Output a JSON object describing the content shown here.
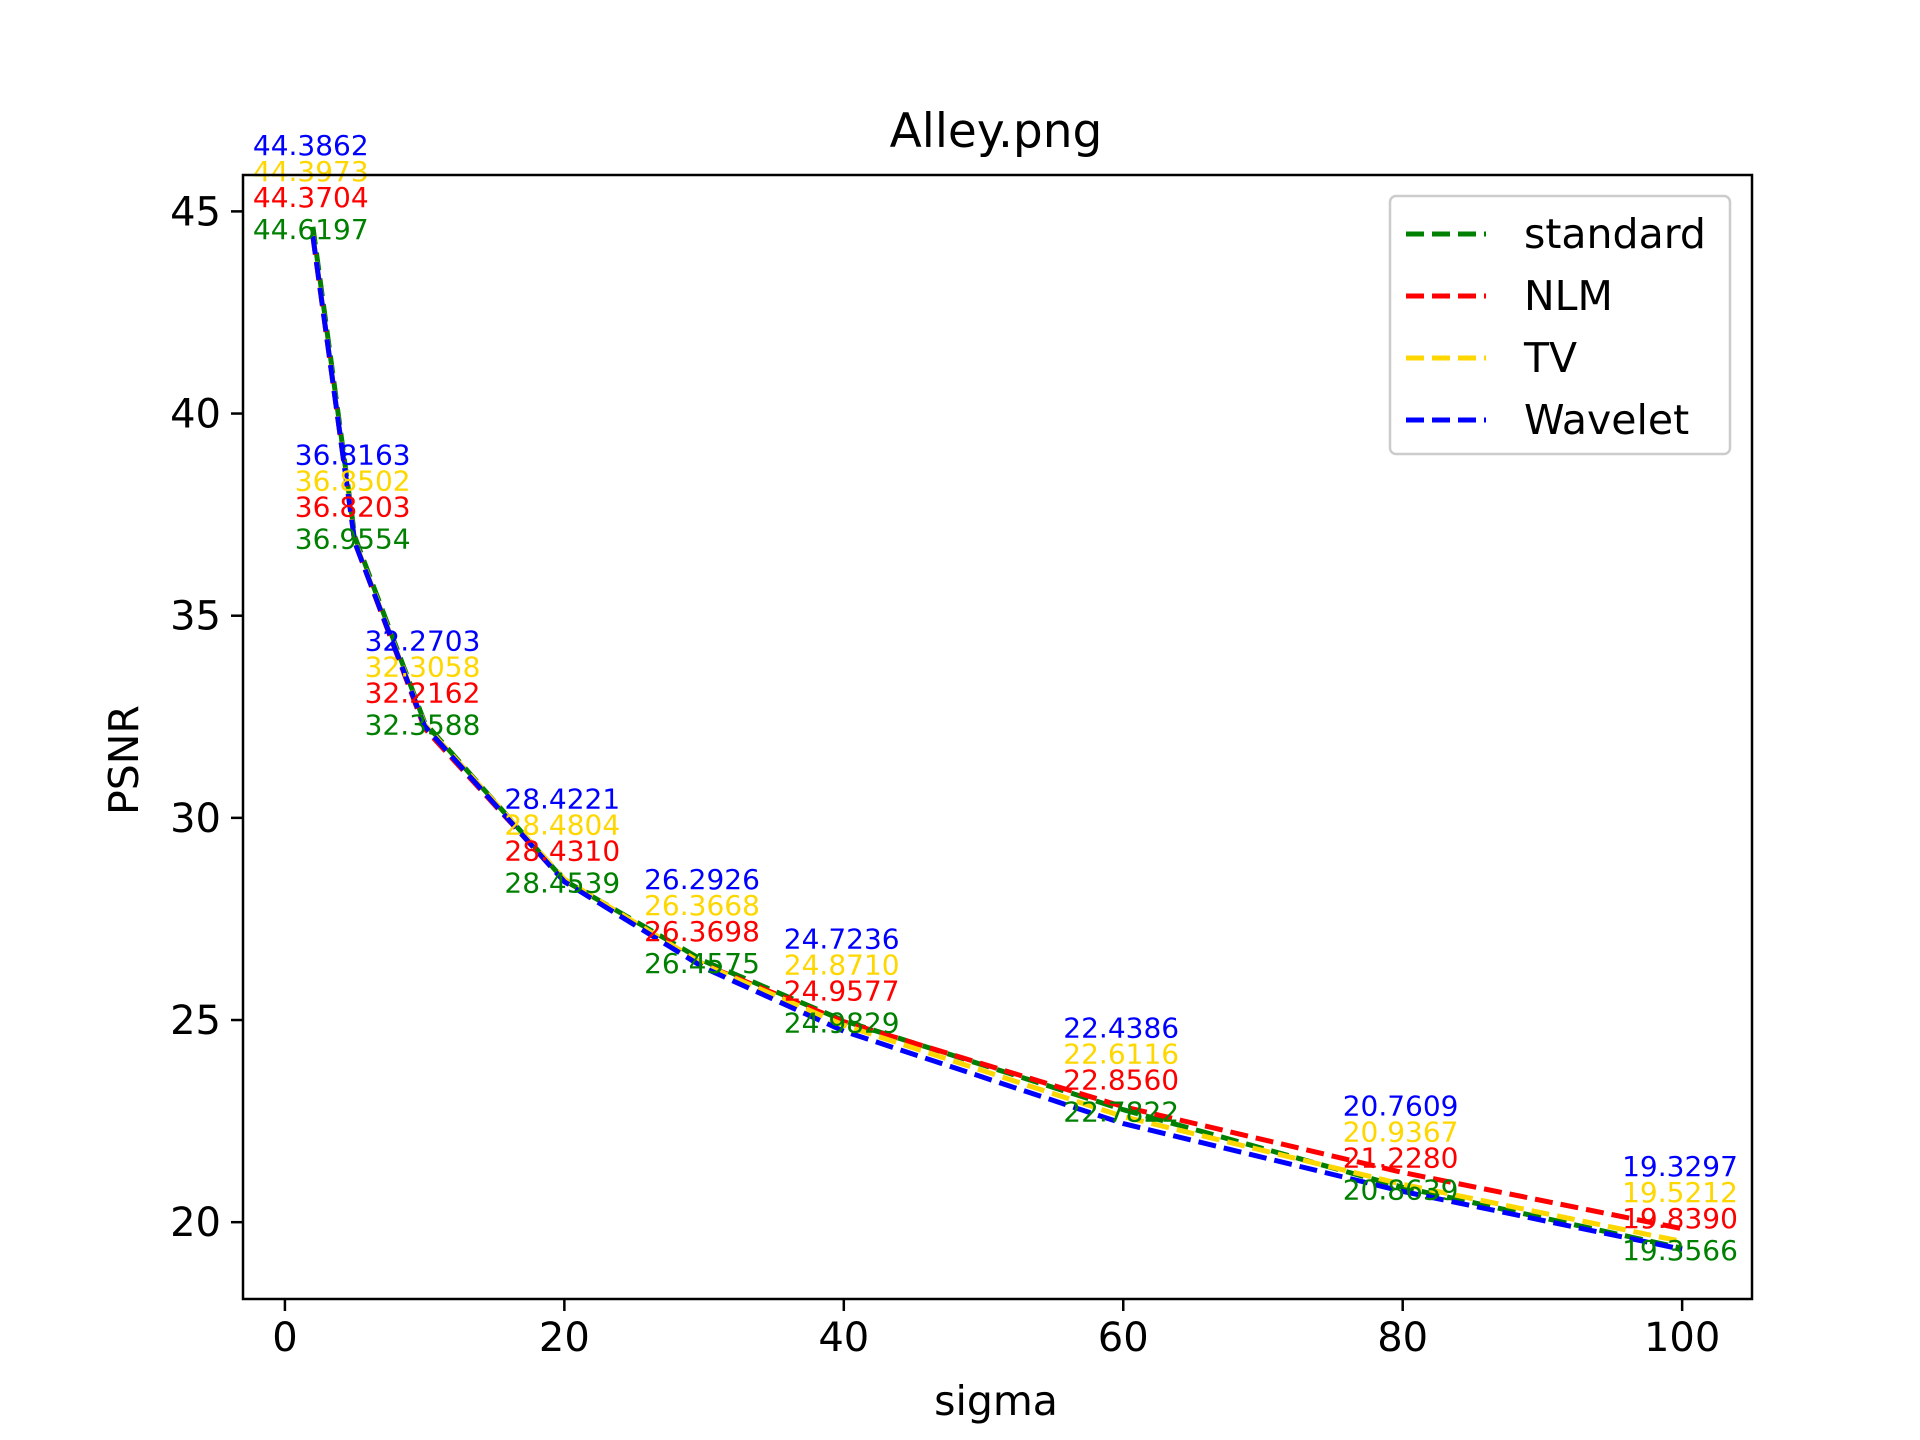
{
  "chart_data": {
    "type": "line",
    "title": "Alley.png",
    "xlabel": "sigma",
    "ylabel": "PSNR",
    "x": [
      2,
      5,
      10,
      20,
      30,
      40,
      60,
      80,
      100
    ],
    "xlim": [
      -3,
      105
    ],
    "ylim": [
      18.1,
      45.9
    ],
    "xticks": [
      0,
      20,
      40,
      60,
      80,
      100
    ],
    "yticks": [
      20,
      25,
      30,
      35,
      40,
      45
    ],
    "xtick_labels": [
      "0",
      "20",
      "40",
      "60",
      "80",
      "100"
    ],
    "ytick_labels": [
      "20",
      "25",
      "30",
      "35",
      "40",
      "45"
    ],
    "legend_position": "upper-right",
    "line_style": "dashed",
    "series": [
      {
        "name": "standard",
        "color": "#008000",
        "values": [
          44.6197,
          36.9554,
          32.3588,
          28.4539,
          26.4575,
          24.9829,
          22.7822,
          20.8639,
          19.3566
        ],
        "labels": [
          "44.6197",
          "36.9554",
          "32.3588",
          "28.4539",
          "26.4575",
          "24.9829",
          "22.7822",
          "20.8639",
          "19.3566"
        ]
      },
      {
        "name": "NLM",
        "color": "#ff0000",
        "values": [
          44.3704,
          36.8203,
          32.2162,
          28.431,
          26.3698,
          24.9577,
          22.856,
          21.228,
          19.839
        ],
        "labels": [
          "44.3704",
          "36.8203",
          "32.2162",
          "28.4310",
          "26.3698",
          "24.9577",
          "22.8560",
          "21.2280",
          "19.8390"
        ]
      },
      {
        "name": "TV",
        "color": "#ffd700",
        "values": [
          44.3973,
          36.8502,
          32.3058,
          28.4804,
          26.3668,
          24.871,
          22.6116,
          20.9367,
          19.5212
        ],
        "labels": [
          "44.3973",
          "36.8502",
          "32.3058",
          "28.4804",
          "26.3668",
          "24.8710",
          "22.6116",
          "20.9367",
          "19.5212"
        ]
      },
      {
        "name": "Wavelet",
        "color": "#0000ff",
        "values": [
          44.3862,
          36.8163,
          32.2703,
          28.4221,
          26.2926,
          24.7236,
          22.4386,
          20.7609,
          19.3297
        ],
        "labels": [
          "44.3862",
          "36.8163",
          "32.2703",
          "28.4221",
          "26.2926",
          "24.7236",
          "22.4386",
          "20.7609",
          "19.3297"
        ]
      }
    ]
  }
}
